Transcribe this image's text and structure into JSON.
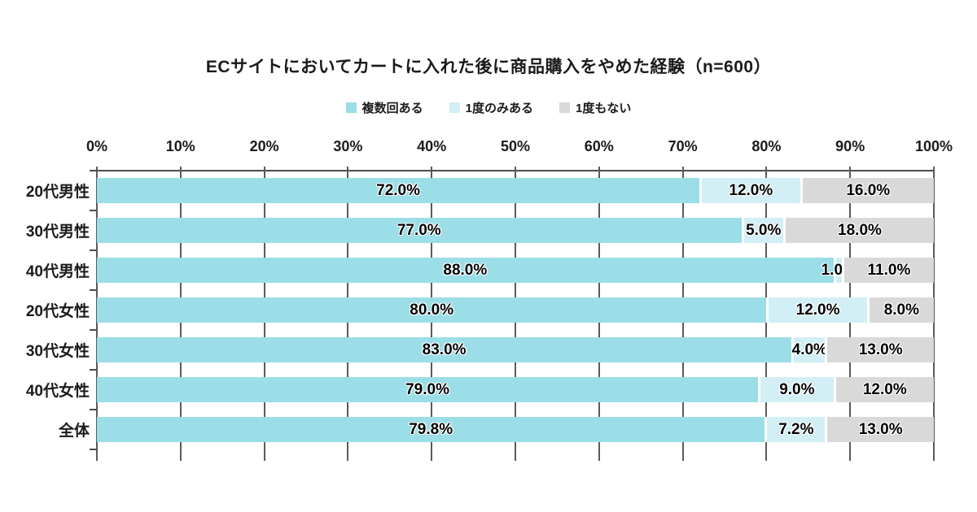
{
  "title": "ECサイトにおいてカートに入れた後に商品購入をやめた経験（n=600）",
  "colors": {
    "series_multiple": "#9BDEE7",
    "series_once": "#D2EFF5",
    "series_never": "#D9D9D9",
    "axis": "#4d4d4d",
    "gridline": "#5a5a5a",
    "text": "#1a1a1a"
  },
  "chart_data": {
    "type": "bar",
    "orientation": "horizontal",
    "stacked": true,
    "title": "ECサイトにおいてカートに入れた後に商品購入をやめた経験（n=600）",
    "categories": [
      "20代男性",
      "30代男性",
      "40代男性",
      "20代女性",
      "30代女性",
      "40代女性",
      "全体"
    ],
    "series": [
      {
        "name": "複数回ある",
        "color": "#9BDEE7",
        "values": [
          72.0,
          77.0,
          88.0,
          80.0,
          83.0,
          79.0,
          79.8
        ]
      },
      {
        "name": "1度のみある",
        "color": "#D2EFF5",
        "values": [
          12.0,
          5.0,
          1.0,
          12.0,
          4.0,
          9.0,
          7.2
        ]
      },
      {
        "name": "1度もない",
        "color": "#D9D9D9",
        "values": [
          16.0,
          18.0,
          11.0,
          8.0,
          13.0,
          12.0,
          13.0
        ]
      }
    ],
    "data_labels": [
      [
        "72.0%",
        "12.0%",
        "16.0%"
      ],
      [
        "77.0%",
        "5.0%",
        "18.0%"
      ],
      [
        "88.0%",
        "1.0%",
        "11.0%"
      ],
      [
        "80.0%",
        "12.0%",
        "8.0%"
      ],
      [
        "83.0%",
        "4.0%",
        "13.0%"
      ],
      [
        "79.0%",
        "9.0%",
        "12.0%"
      ],
      [
        "79.8%",
        "7.2%",
        "13.0%"
      ]
    ],
    "x_ticks": [
      "0%",
      "10%",
      "20%",
      "30%",
      "40%",
      "50%",
      "60%",
      "70%",
      "80%",
      "90%",
      "100%"
    ],
    "xlim": [
      0,
      100
    ],
    "xlabel": "",
    "ylabel": "",
    "grid": true,
    "legend_position": "top"
  }
}
